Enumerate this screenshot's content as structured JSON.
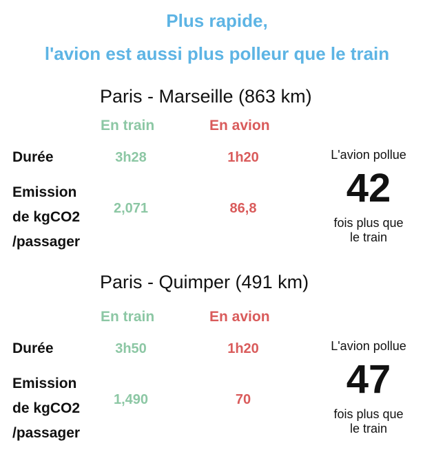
{
  "headline": {
    "line1": "Plus rapide,",
    "line2": "l'avion est aussi plus polleur que le train"
  },
  "comparisons": [
    {
      "route": "Paris - Marseille (863 km)",
      "col_train": "En train",
      "col_plane": "En avion",
      "duration_label": "Durée",
      "emission_label_1": "Emission",
      "emission_label_2": "de kgCO2",
      "emission_label_3": "/passager",
      "train_duration": "3h28",
      "plane_duration": "1h20",
      "train_emission": "2,071",
      "plane_emission": "86,8",
      "pollue_label": "L'avion pollue",
      "factor": "42",
      "fois_line1": "fois plus que",
      "fois_line2": "le train"
    },
    {
      "route": "Paris - Quimper (491 km)",
      "col_train": "En train",
      "col_plane": "En avion",
      "duration_label": "Durée",
      "emission_label_1": "Emission",
      "emission_label_2": "de kgCO2",
      "emission_label_3": "/passager",
      "train_duration": "3h50",
      "plane_duration": "1h20",
      "train_emission": "1,490",
      "plane_emission": "70",
      "pollue_label": "L'avion pollue",
      "factor": "47",
      "fois_line1": "fois plus que",
      "fois_line2": "le train"
    }
  ],
  "colors": {
    "headline": "#5db4e4",
    "train": "#8cc7a4",
    "plane": "#d95b5b",
    "text": "#111111"
  }
}
